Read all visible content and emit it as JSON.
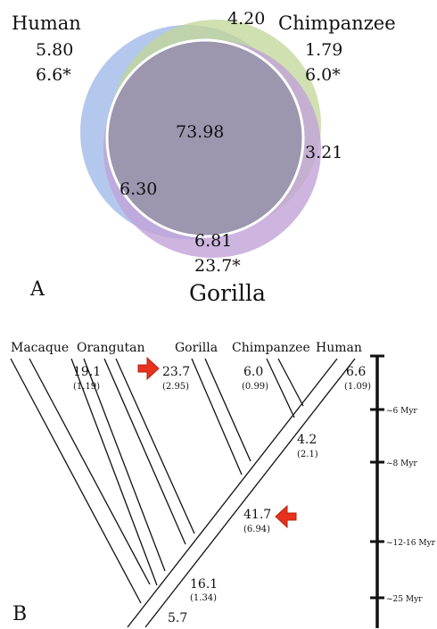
{
  "panel_a": {
    "letter": "A",
    "species": {
      "human": "Human",
      "chimpanzee": "Chimpanzee",
      "gorilla": "Gorilla"
    },
    "values": {
      "human_only": "5.80",
      "human_star": "6.6*",
      "top_overlap": "4.20",
      "chimp_only": "1.79",
      "chimp_star": "6.0*",
      "center": "73.98",
      "right_overlap": "3.21",
      "left_overlap": "6.30",
      "gorilla_only": "6.81",
      "gorilla_star": "23.7*"
    },
    "colors": {
      "human": "#9ab6e6",
      "chimpanzee": "#c2d696",
      "gorilla": "#c1a3d8",
      "center": "#9893aa"
    }
  },
  "panel_b": {
    "letter": "B",
    "taxa": [
      "Macaque",
      "Orangutan",
      "Gorilla",
      "Chimpanzee",
      "Human"
    ],
    "branches": {
      "orangutan": {
        "value": "19.1",
        "sub": "(1.19)"
      },
      "gorilla": {
        "value": "23.7",
        "sub": "(2.95)"
      },
      "chimpanzee": {
        "value": "6.0",
        "sub": "(0.99)"
      },
      "human": {
        "value": "6.6",
        "sub": "(1.09)"
      },
      "human_chimp_stem": {
        "value": "4.2",
        "sub": "(2.1)"
      },
      "african_ape_stem": {
        "value": "41.7",
        "sub": "(6.94)"
      },
      "great_ape_stem": {
        "value": "16.1",
        "sub": "(1.34)"
      },
      "root": {
        "value": "5.7"
      }
    },
    "scale_ticks": [
      "~6 Myr",
      "~8 Myr",
      "~12-16 Myr",
      "~25 Myr"
    ],
    "arrow_color": "#e8321e"
  }
}
